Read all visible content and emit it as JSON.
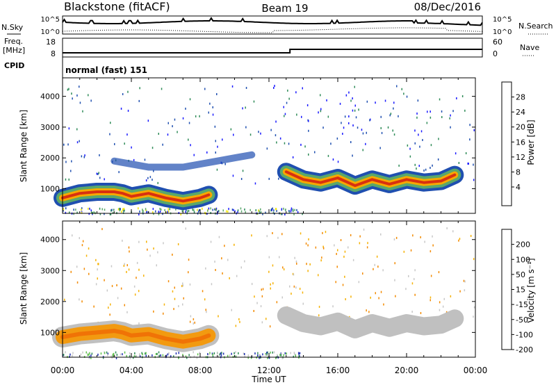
{
  "header": {
    "station": "Blackstone (fitACF)",
    "beam": "Beam 19",
    "date": "08/Dec/2016"
  },
  "noise_panel": {
    "left_label": "N.Sky",
    "right_label": "N.Search",
    "left_ticks": [
      "10^5",
      "10^0"
    ],
    "right_ticks": [
      "10^5",
      "10^0"
    ]
  },
  "freq_panel": {
    "left_label_1": "Freq.",
    "left_label_2": "[MHz]",
    "left_ticks": [
      "18",
      "8"
    ],
    "right_label": "Nave",
    "right_ticks": [
      "60",
      "0"
    ]
  },
  "cpid_panel": {
    "label": "CPID",
    "text": "normal (fast) 151"
  },
  "colors": {
    "power_scale": [
      "#1a1aff",
      "#1f4fb0",
      "#2e8b57",
      "#5aa86a",
      "#f2e600",
      "#f6a800",
      "#f37a00",
      "#ef3a00",
      "#e00000"
    ],
    "velocity_scale": [
      "#2030b0",
      "#2e8b57",
      "#5fc24a",
      "#c8c8c8",
      "#f6b100",
      "#f38a00",
      "#ef5a00",
      "#e00000"
    ],
    "power_band": "#d83010",
    "velocity_band": "#f29a10",
    "ground_scatter": "#c0c0c0"
  },
  "chart_data": [
    {
      "type": "heatmap",
      "name": "power",
      "ylabel": "Slant Range [km]",
      "xlabel": "",
      "x_ticks": [
        "00:00",
        "04:00",
        "08:00",
        "12:00",
        "16:00",
        "20:00",
        "00:00"
      ],
      "y_ticks": [
        "1000",
        "2000",
        "3000",
        "4000"
      ],
      "ylim": [
        200,
        4600
      ],
      "xlim": [
        0,
        24
      ],
      "colorbar": {
        "label": "Power [dB]",
        "ticks": [
          "28",
          "24",
          "20",
          "16",
          "12",
          "8",
          "4"
        ],
        "range": [
          0,
          32
        ]
      },
      "features": [
        {
          "feature": "main-band",
          "x": [
            0,
            1,
            2,
            3,
            3.5,
            4,
            5,
            6,
            7,
            8,
            8.5
          ],
          "y": [
            700,
            850,
            900,
            900,
            850,
            750,
            850,
            700,
            600,
            700,
            800
          ]
        },
        {
          "feature": "upper-band",
          "x": [
            13,
            14,
            15,
            16,
            17,
            18,
            19,
            20,
            21,
            22,
            22.8
          ],
          "y": [
            1550,
            1300,
            1200,
            1350,
            1100,
            1300,
            1150,
            1300,
            1200,
            1250,
            1450
          ]
        },
        {
          "feature": "scatter-mid",
          "x": [
            3,
            5,
            7,
            9,
            10,
            11
          ],
          "y": [
            1900,
            1700,
            1700,
            1900,
            2000,
            2100
          ]
        }
      ]
    },
    {
      "type": "heatmap",
      "name": "velocity",
      "ylabel": "Slant Range [km]",
      "xlabel": "Time UT",
      "x_ticks": [
        "00:00",
        "04:00",
        "08:00",
        "12:00",
        "16:00",
        "20:00",
        "00:00"
      ],
      "y_ticks": [
        "1000",
        "2000",
        "3000",
        "4000"
      ],
      "ylim": [
        200,
        4600
      ],
      "xlim": [
        0,
        24
      ],
      "colorbar": {
        "label": "Velocity [m s⁻¹]",
        "ticks": [
          "200",
          "100",
          "50",
          "15",
          "-15",
          "-50",
          "-100",
          "-200"
        ],
        "range": [
          -250,
          250
        ]
      },
      "features": [
        {
          "feature": "main-band",
          "x": [
            0,
            1,
            2,
            3,
            3.5,
            4,
            5,
            6,
            7,
            8,
            8.5
          ],
          "y": [
            850,
            950,
            1000,
            1050,
            1000,
            900,
            950,
            800,
            700,
            800,
            900
          ]
        },
        {
          "feature": "upper-band",
          "x": [
            13,
            14,
            15,
            16,
            17,
            18,
            19,
            20,
            21,
            22,
            22.8
          ],
          "y": [
            1550,
            1300,
            1200,
            1350,
            1100,
            1300,
            1150,
            1300,
            1200,
            1250,
            1450
          ]
        }
      ]
    }
  ]
}
